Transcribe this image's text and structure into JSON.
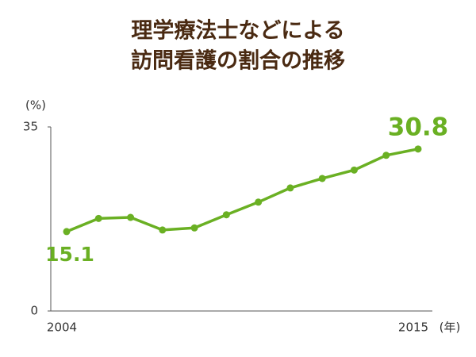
{
  "chart_data": {
    "type": "line",
    "title": [
      "理学療法士などによる",
      "訪問看護の割合の推移"
    ],
    "y_unit": "(%)",
    "x_unit": "(年)",
    "x": [
      2004,
      2005,
      2006,
      2007,
      2008,
      2009,
      2010,
      2011,
      2012,
      2013,
      2014,
      2015
    ],
    "values": [
      15.1,
      17.6,
      17.8,
      15.4,
      15.8,
      18.3,
      20.7,
      23.4,
      25.2,
      26.8,
      29.6,
      30.8
    ],
    "color": "#6ab023",
    "xlim": [
      2004,
      2015
    ],
    "xticks": [
      2004,
      2015
    ],
    "ylim": [
      0,
      35
    ],
    "yticks": [
      0,
      35
    ],
    "grid": false
  }
}
